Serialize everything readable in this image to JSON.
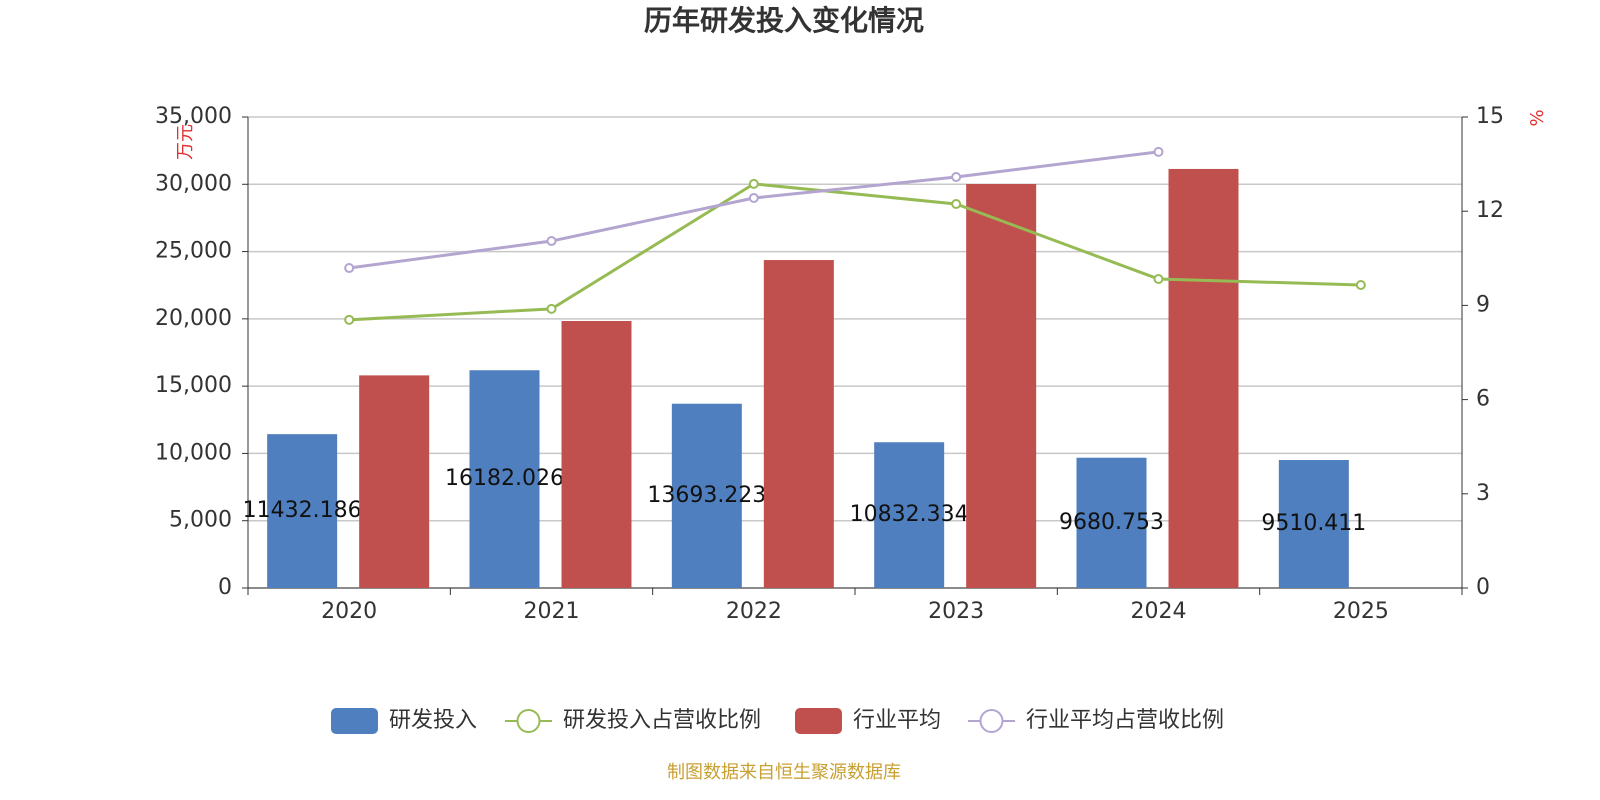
{
  "chart_data": {
    "type": "bar",
    "title": "历年研发投入变化情况",
    "y_unit": "万元",
    "y2_unit": "%",
    "source": "制图数据来自恒生聚源数据库",
    "categories": [
      "2020",
      "2021",
      "2022",
      "2023",
      "2024",
      "2025"
    ],
    "series": [
      {
        "name": "研发投入",
        "type": "bar",
        "color": "#4f7fbf",
        "values": [
          11432.186,
          16182.026,
          13693.223,
          10832.334,
          9680.753,
          9510.411
        ]
      },
      {
        "name": "研发投入占营收比例",
        "type": "line",
        "axis": "y2",
        "color": "#97bb54",
        "values": [
          8.54,
          8.89,
          12.87,
          12.23,
          9.84,
          9.65
        ]
      },
      {
        "name": "行业平均",
        "type": "bar",
        "color": "#c0504d",
        "values": [
          15800,
          19840,
          24370,
          30020,
          31140,
          null
        ]
      },
      {
        "name": "行业平均占营收比例",
        "type": "line",
        "axis": "y2",
        "color": "#b3a5cf",
        "values": [
          10.19,
          11.05,
          12.42,
          13.09,
          13.89,
          null
        ]
      }
    ],
    "ylim": [
      0,
      35000
    ],
    "yticks": [
      0,
      {
        "value": 5000,
        "label": "5,000"
      },
      {
        "value": 10000,
        "label": "10,000"
      },
      {
        "value": 15000,
        "label": "15,000"
      },
      {
        "value": 20000,
        "label": "20,000"
      },
      {
        "value": 25000,
        "label": "25,000"
      },
      {
        "value": 30000,
        "label": "30,000"
      },
      {
        "value": 35000,
        "label": "35,000"
      }
    ],
    "y2lim": [
      0,
      15
    ],
    "y2ticks": [
      0,
      3,
      6,
      9,
      12,
      15
    ],
    "grid": true,
    "legend": "bottom"
  }
}
